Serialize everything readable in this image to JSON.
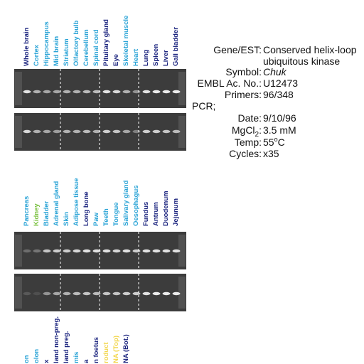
{
  "panels": [
    {
      "lanes": [
        {
          "label": "Whole brain",
          "color": "#1a237e"
        },
        {
          "label": "Cortex",
          "color": "#29a3d6"
        },
        {
          "label": "Hippocampus",
          "color": "#29a3d6"
        },
        {
          "label": "Mid brain",
          "color": "#29a3d6"
        },
        {
          "label": "Striatum",
          "color": "#29a3d6"
        },
        {
          "label": "Olfactory bulb",
          "color": "#29a3d6"
        },
        {
          "label": "Cerebellum",
          "color": "#29a3d6"
        },
        {
          "label": "Spinal cord",
          "color": "#29a3d6"
        },
        {
          "label": "Pituitary gland",
          "color": "#1a237e"
        },
        {
          "label": "Eye",
          "color": "#1a237e"
        },
        {
          "label": "Skeletal muscle",
          "color": "#29a3d6"
        },
        {
          "label": "Heart",
          "color": "#29a3d6"
        },
        {
          "label": "Lung",
          "color": "#1a237e"
        },
        {
          "label": "Spleen",
          "color": "#1a237e"
        },
        {
          "label": "Liver",
          "color": "#1a237e"
        },
        {
          "label": "Gall bladder",
          "color": "#1a237e"
        }
      ]
    },
    {
      "lanes": [
        {
          "label": "Pancreas",
          "color": "#29a3d6"
        },
        {
          "label": "Kidney",
          "color": "#7cc242"
        },
        {
          "label": "Bladder",
          "color": "#29a3d6"
        },
        {
          "label": "Adrenal gland",
          "color": "#29a3d6"
        },
        {
          "label": "Skin",
          "color": "#29a3d6"
        },
        {
          "label": "Adipose tissue",
          "color": "#29a3d6"
        },
        {
          "label": "Long bone",
          "color": "#1a237e"
        },
        {
          "label": "Paw",
          "color": "#29a3d6"
        },
        {
          "label": "Teeth",
          "color": "#29a3d6"
        },
        {
          "label": "Tongue",
          "color": "#29a3d6"
        },
        {
          "label": "Salivary gland",
          "color": "#29a3d6"
        },
        {
          "label": "Oesophagus",
          "color": "#29a3d6"
        },
        {
          "label": "Fundus",
          "color": "#1a237e"
        },
        {
          "label": "Antrum",
          "color": "#1a237e"
        },
        {
          "label": "Duodenum",
          "color": "#1a237e"
        },
        {
          "label": "Jejunum",
          "color": "#1a237e"
        }
      ]
    },
    {
      "lanes": [
        {
          "label": "on",
          "color": "#29a3d6"
        },
        {
          "label": "olon",
          "color": "#29a3d6"
        },
        {
          "label": "x",
          "color": "#1a237e"
        },
        {
          "label": "land non-preg.",
          "color": "#1a237e"
        },
        {
          "label": "land preg.",
          "color": "#1a237e"
        },
        {
          "label": "mis",
          "color": "#29a3d6"
        },
        {
          "label": "a",
          "color": "#1a237e"
        },
        {
          "label": "n foetus",
          "color": "#1a237e"
        },
        {
          "label": "roduct",
          "color": "#f2d64b"
        },
        {
          "label": "NA (Top)",
          "color": "#f2d64b"
        },
        {
          "label": "NA (Bot.)",
          "color": "#1a237e"
        }
      ]
    }
  ],
  "info": {
    "gene_label": "Gene/EST:",
    "gene_value": [
      "Conserved helix-loop",
      "ubiquitous kinase"
    ],
    "symbol_label": "Symbol:",
    "symbol_value": "Chuk",
    "embl_label": "EMBL Ac. No.:",
    "embl_value": "U12473",
    "primers_label": "Primers:",
    "primers_value": "96/348",
    "pcr_label": "PCR;",
    "date_label": "Date:",
    "date_value": "9/10/96",
    "mgcl_label": {
      "text": "MgCl",
      "sub": "2",
      "after": ":"
    },
    "mgcl_value": "3.5 mM",
    "temp_label": "Temp:",
    "temp_value": {
      "text": "55",
      "sup": "o",
      "after": "C"
    },
    "cycles_label": "Cycles:",
    "cycles_value": "x35"
  }
}
